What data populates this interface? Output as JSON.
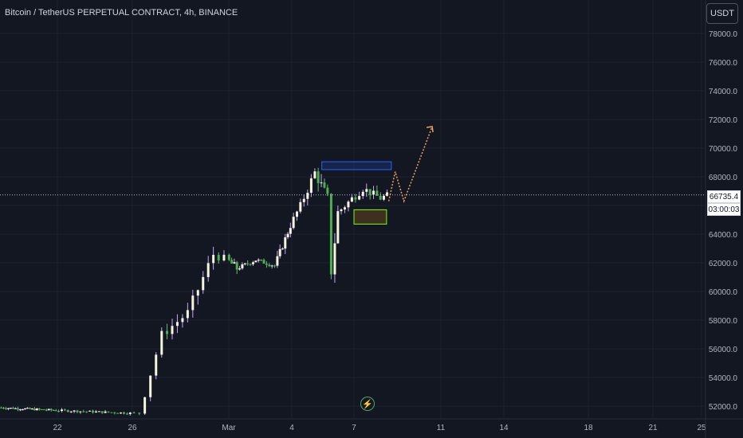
{
  "header": {
    "symbol_title": "Bitcoin / TetherUS PERPETUAL CONTRACT, 4h, BINANCE"
  },
  "toolbar": {
    "currency_label": "USDT"
  },
  "price_scale": {
    "last_price": "66735.4",
    "countdown": "03:00:03"
  },
  "colors": {
    "background": "#131722",
    "grid": "#1e222d",
    "text": "#d1d4dc",
    "up_candle": "#f5f5dc",
    "down_candle": "#4caf50",
    "wick": "#9c27b0",
    "resistance_zone": "#2962ff",
    "support_zone": "#76ff03",
    "projection": "#f0a060"
  },
  "chart_data": {
    "type": "candlestick",
    "symbol": "Bitcoin / TetherUS PERPETUAL CONTRACT",
    "interval": "4h",
    "exchange": "BINANCE",
    "ylim": [
      51300,
      79000
    ],
    "y_ticks": [
      52000,
      54000,
      56000,
      58000,
      60000,
      62000,
      64000,
      66000,
      68000,
      70000,
      72000,
      74000,
      76000,
      78000
    ],
    "y_tick_labels": [
      "52000.0",
      "54000.0",
      "56000.0",
      "58000.0",
      "60000.0",
      "62000.0",
      "64000.0",
      "66000.0",
      "68000.0",
      "70000.0",
      "72000.0",
      "74000.0",
      "76000.0",
      "78000.0"
    ],
    "x_tick_labels": [
      "22",
      "26",
      "Mar",
      "4",
      "7",
      "11",
      "14",
      "18",
      "21",
      "25"
    ],
    "x_tick_days": [
      22,
      26,
      29,
      33,
      36,
      40,
      43,
      47,
      50,
      54
    ],
    "last_price": 66735.4,
    "segments": [
      {
        "days": [
          18,
          26.3
        ],
        "start": 51900,
        "end": 51500,
        "vol": 150
      },
      {
        "days": [
          26.3,
          27.0
        ],
        "start": 51500,
        "end": 57000,
        "vol": 600
      },
      {
        "days": [
          27.0,
          27.8
        ],
        "start": 57000,
        "end": 58500,
        "vol": 700
      },
      {
        "days": [
          27.8,
          28.6
        ],
        "start": 58500,
        "end": 62600,
        "vol": 800
      },
      {
        "days": [
          28.6,
          29.6
        ],
        "start": 62600,
        "end": 61600,
        "vol": 600
      },
      {
        "days": [
          29.6,
          30.8
        ],
        "start": 61600,
        "end": 62200,
        "vol": 300
      },
      {
        "days": [
          30.8,
          32.0
        ],
        "start": 62200,
        "end": 61800,
        "vol": 300
      },
      {
        "days": [
          32.0,
          33.5
        ],
        "start": 61800,
        "end": 66000,
        "vol": 500
      },
      {
        "days": [
          33.5,
          34.2
        ],
        "start": 66000,
        "end": 68300,
        "vol": 700
      },
      {
        "days": [
          34.2,
          34.8
        ],
        "start": 68300,
        "end": 66500,
        "vol": 800
      },
      {
        "days": [
          34.8,
          35.0
        ],
        "start": 66500,
        "end": 61500,
        "vol": 1200
      },
      {
        "days": [
          35.0,
          35.3
        ],
        "start": 61500,
        "end": 65500,
        "vol": 900
      },
      {
        "days": [
          35.3,
          36.5
        ],
        "start": 65500,
        "end": 67200,
        "vol": 600
      },
      {
        "days": [
          36.5,
          37.3
        ],
        "start": 67200,
        "end": 66500,
        "vol": 500
      },
      {
        "days": [
          37.3,
          37.6
        ],
        "start": 66500,
        "end": 66735,
        "vol": 400
      }
    ],
    "zones": [
      {
        "name": "resistance",
        "day_start": 34.45,
        "day_end": 37.72,
        "price_low": 68500,
        "price_high": 69050
      },
      {
        "name": "support",
        "day_start": 36.0,
        "day_end": 37.5,
        "price_low": 64700,
        "price_high": 65700
      }
    ],
    "projection_path": [
      {
        "day": 37.6,
        "price": 66300
      },
      {
        "day": 37.9,
        "price": 68350
      },
      {
        "day": 38.3,
        "price": 66300
      },
      {
        "day": 39.6,
        "price": 71500
      }
    ]
  }
}
